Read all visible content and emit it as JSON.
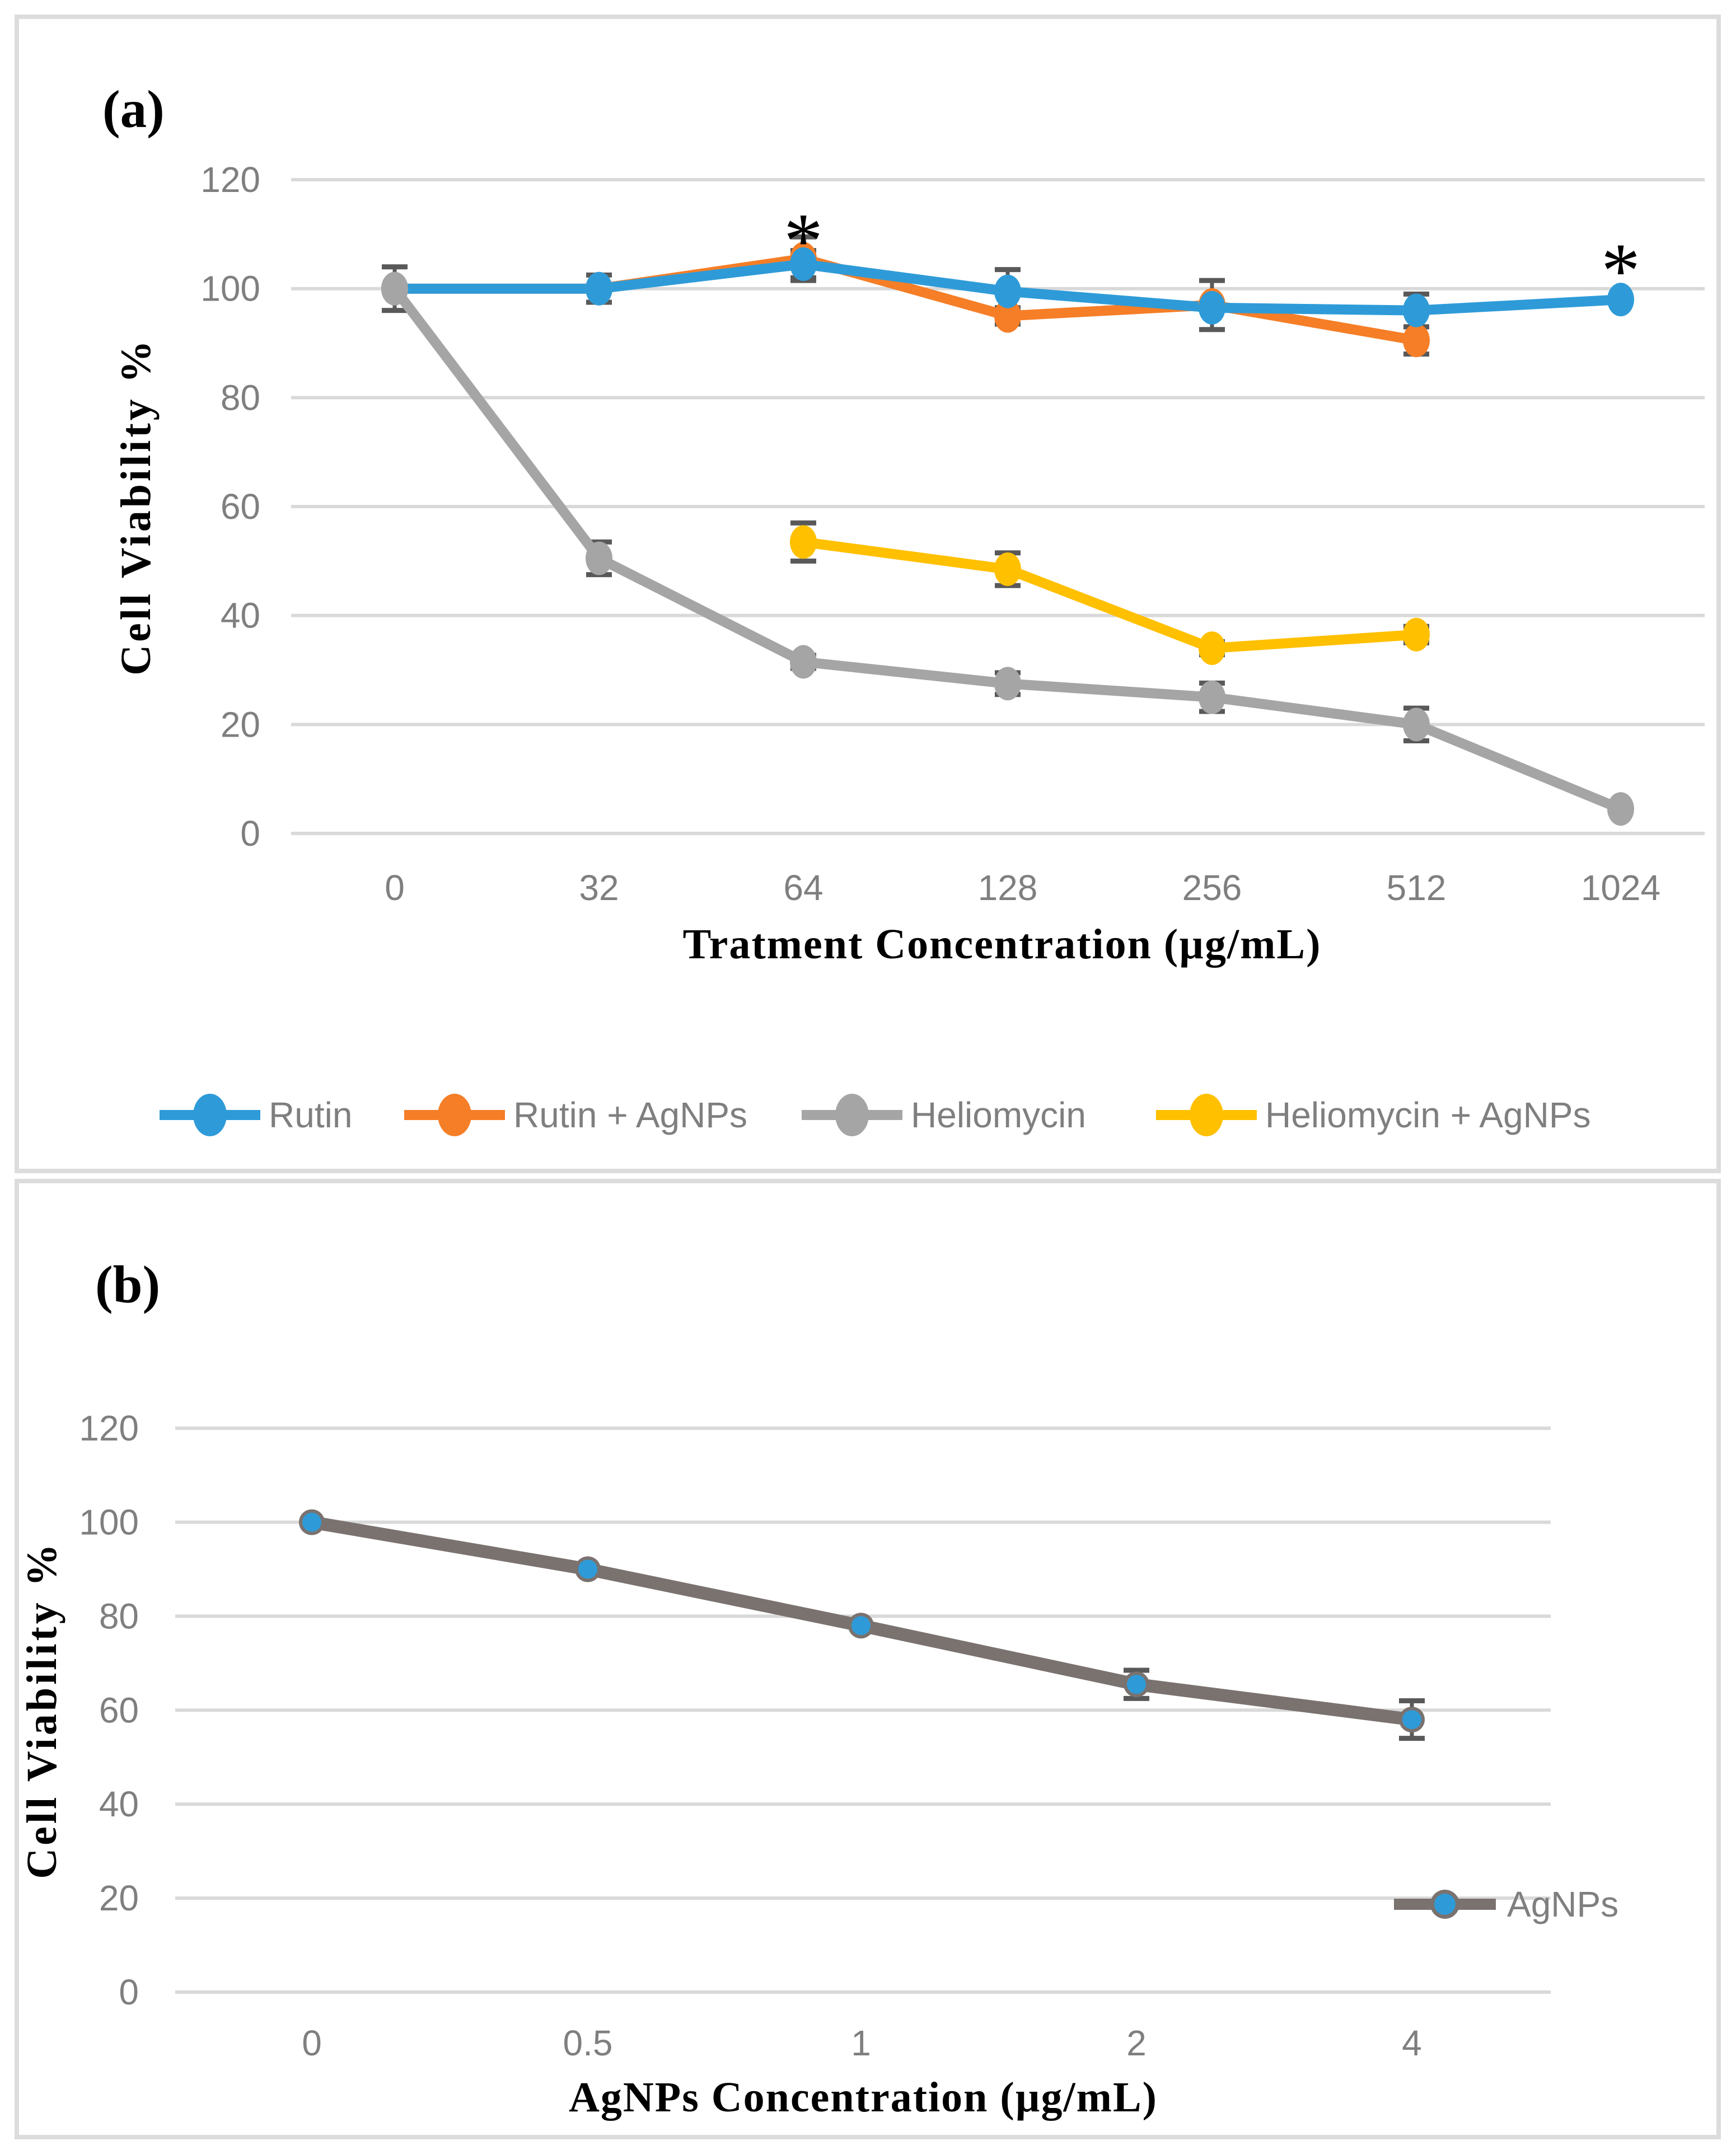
{
  "figure": {
    "background": "#ffffff",
    "panel_border_color": "#DCDCDC",
    "gridline_color": "#D9D9D9",
    "error_bar_color": "#595959",
    "tick_label_color": "#7F7F7F",
    "panels": {
      "a": {
        "letter": "(a)"
      },
      "b": {
        "letter": "(b)"
      }
    }
  },
  "chart_data": [
    {
      "id": "a",
      "type": "line",
      "panel_letter": "(a)",
      "xlabel": "Tratment Concentration (µg/mL)",
      "ylabel": "Cell Viability %",
      "categories": [
        "0",
        "32",
        "64",
        "128",
        "256",
        "512",
        "1024"
      ],
      "ylim": [
        0,
        120
      ],
      "yticks": [
        0,
        20,
        40,
        60,
        80,
        100,
        120
      ],
      "grid": true,
      "legend_position": "bottom",
      "series": [
        {
          "name": "Rutin",
          "color": "#2E9BD8",
          "values": [
            100,
            100,
            104.5,
            99.5,
            96.5,
            96,
            98
          ],
          "errors": [
            4,
            2.5,
            2.5,
            4,
            0,
            3,
            0
          ]
        },
        {
          "name": "Rutin + AgNPs",
          "color": "#F57E27",
          "values": [
            100,
            100,
            105.5,
            95,
            97,
            90.5,
            null
          ],
          "errors": [
            0,
            0,
            4,
            1.5,
            4.5,
            2.5,
            null
          ]
        },
        {
          "name": "Heliomycin",
          "color": "#A5A5A5",
          "values": [
            100,
            50.5,
            31.5,
            27.5,
            25,
            20,
            4.5
          ],
          "errors": [
            0,
            3,
            1.2,
            2,
            2.6,
            3,
            0
          ]
        },
        {
          "name": "Heliomycin + AgNPs",
          "color": "#FFC000",
          "values": [
            null,
            null,
            53.5,
            48.5,
            34,
            36.5,
            null
          ],
          "errors": [
            null,
            null,
            3.5,
            3,
            1.2,
            1.5,
            null
          ]
        }
      ],
      "annotations": [
        {
          "text": "*",
          "category_index": 2,
          "value": 104
        },
        {
          "text": "*",
          "category_index": 6,
          "value": 98.5
        }
      ]
    },
    {
      "id": "b",
      "type": "line",
      "panel_letter": "(b)",
      "xlabel": "AgNPs Concentration (µg/mL)",
      "ylabel": "Cell Viability %",
      "categories": [
        "0",
        "0.5",
        "1",
        "2",
        "4"
      ],
      "ylim": [
        0,
        120
      ],
      "yticks": [
        0,
        20,
        40,
        60,
        80,
        100,
        120
      ],
      "grid": true,
      "legend_position": "inside-right",
      "series": [
        {
          "name": "AgNPs",
          "color": "#7A726F",
          "marker_fill": "#2E9BD8",
          "values": [
            100,
            90,
            78,
            65.5,
            58
          ],
          "errors": [
            0,
            0,
            0,
            3,
            4
          ]
        }
      ],
      "annotations": []
    }
  ]
}
